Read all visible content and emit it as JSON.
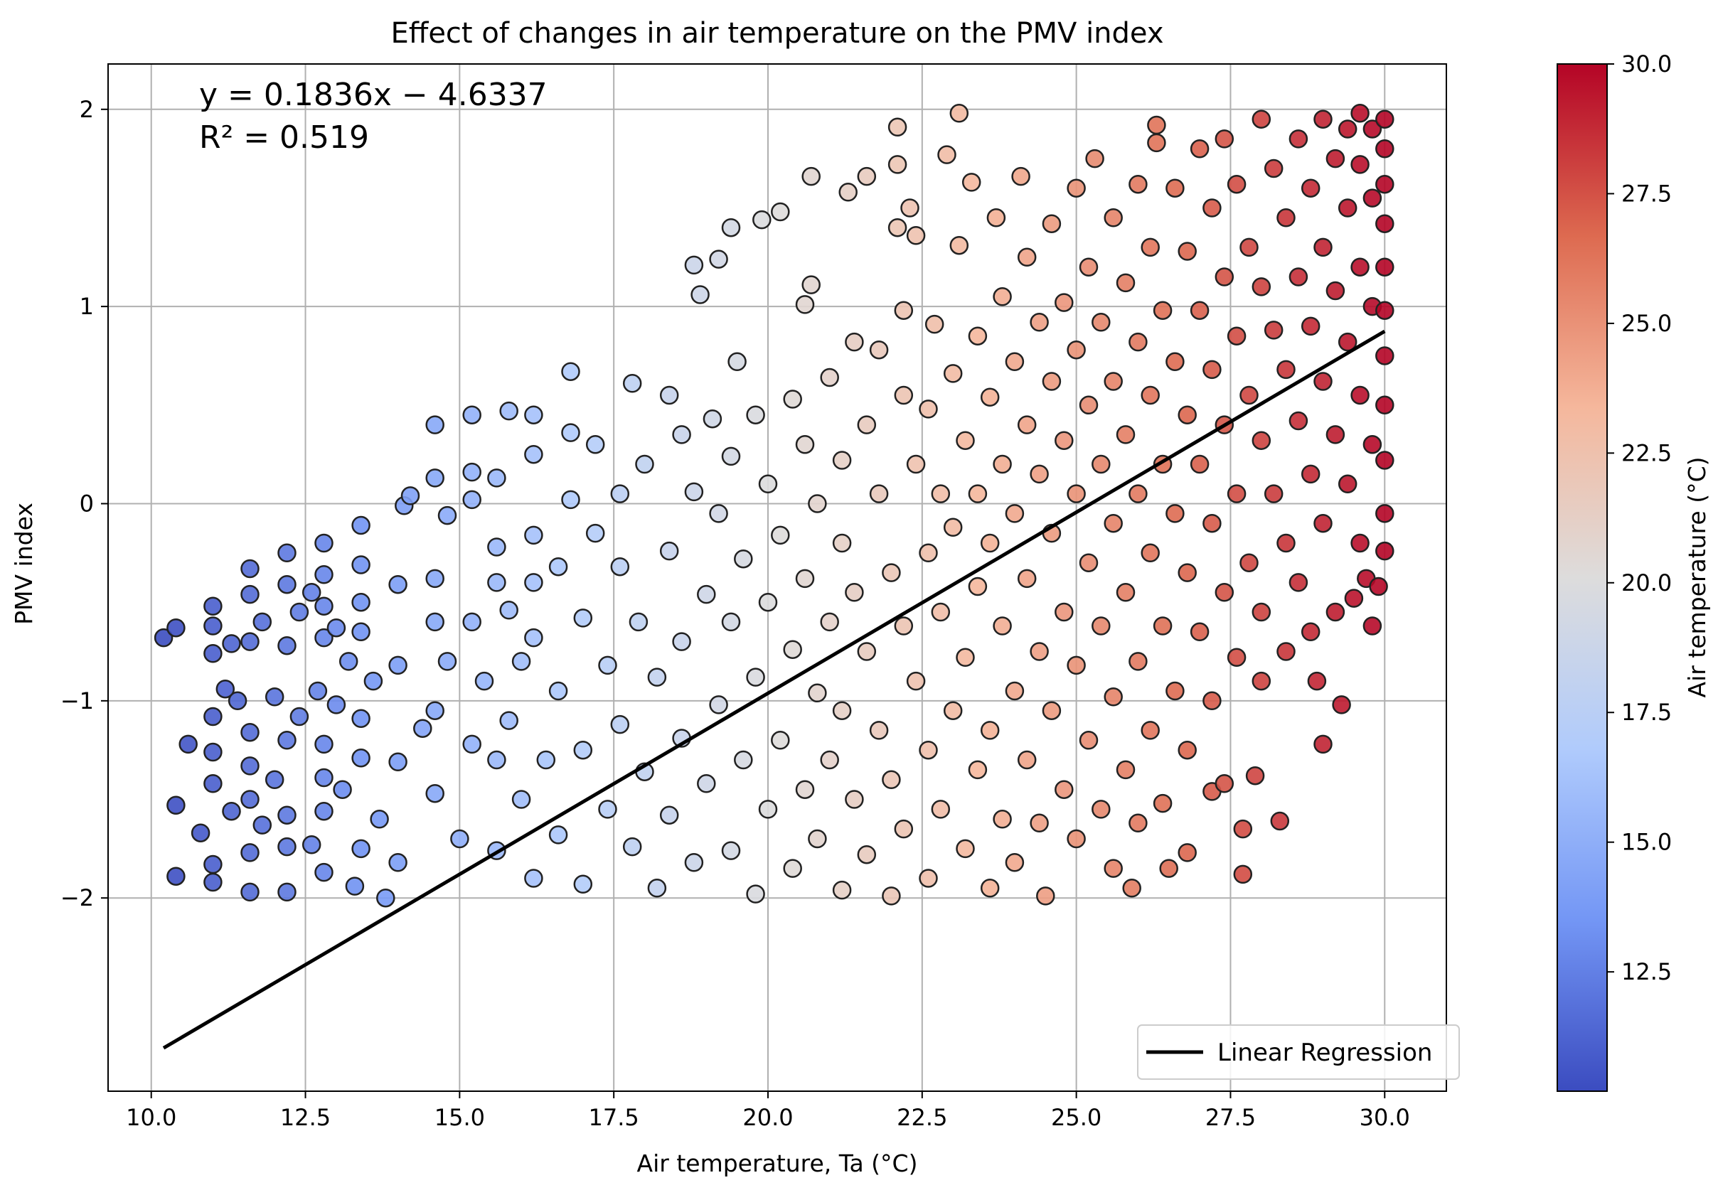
{
  "chart_data": {
    "type": "scatter",
    "title": "Effect of changes in air temperature on the PMV index",
    "xlabel": "Air temperature, Ta (°C)",
    "ylabel": "PMV index",
    "xlim": [
      9.3,
      31.0
    ],
    "ylim": [
      -2.98,
      2.23
    ],
    "xticks": [
      10.0,
      12.5,
      15.0,
      17.5,
      20.0,
      22.5,
      25.0,
      27.5,
      30.0
    ],
    "xtick_labels": [
      "10.0",
      "12.5",
      "15.0",
      "17.5",
      "20.0",
      "22.5",
      "25.0",
      "27.5",
      "30.0"
    ],
    "yticks": [
      2,
      1,
      0,
      -1,
      -2
    ],
    "ytick_labels": [
      "2",
      "1",
      "0",
      "−1",
      "−2"
    ],
    "grid": true,
    "annotation": {
      "equation": "y = 0.1836x − 4.6337",
      "r_squared": "R² = 0.519"
    },
    "regression": {
      "label": "Linear Regression",
      "slope": 0.1836,
      "intercept": -4.6337,
      "x_range": [
        10.2,
        30.0
      ],
      "color": "#000000"
    },
    "legend": {
      "entries": [
        "Linear Regression"
      ],
      "position": "lower-right"
    },
    "colorbar": {
      "label": "Air temperature (°C)",
      "min": 10.2,
      "max": 30.0,
      "ticks": [
        30.0,
        27.5,
        25.0,
        22.5,
        20.0,
        17.5,
        15.0,
        12.5
      ],
      "tick_labels": [
        "30.0",
        "27.5",
        "25.0",
        "22.5",
        "20.0",
        "17.5",
        "15.0",
        "12.5"
      ],
      "colormap": "coolwarm",
      "colors": [
        "#3b4cc0",
        "#7396f5",
        "#b0cbfc",
        "#dddcdc",
        "#f5b79c",
        "#dd6a50",
        "#b40426"
      ]
    },
    "points": [
      [
        10.2,
        -0.68
      ],
      [
        10.4,
        -0.63
      ],
      [
        10.4,
        -1.53
      ],
      [
        10.4,
        -1.89
      ],
      [
        10.6,
        -1.22
      ],
      [
        10.8,
        -1.67
      ],
      [
        11.0,
        -0.52
      ],
      [
        11.0,
        -0.62
      ],
      [
        11.0,
        -0.76
      ],
      [
        11.0,
        -1.08
      ],
      [
        11.0,
        -1.26
      ],
      [
        11.0,
        -1.42
      ],
      [
        11.0,
        -1.83
      ],
      [
        11.0,
        -1.92
      ],
      [
        11.2,
        -0.94
      ],
      [
        11.3,
        -1.56
      ],
      [
        11.3,
        -0.71
      ],
      [
        11.4,
        -1.0
      ],
      [
        11.6,
        -0.33
      ],
      [
        11.6,
        -0.46
      ],
      [
        11.6,
        -0.7
      ],
      [
        11.6,
        -1.16
      ],
      [
        11.6,
        -1.33
      ],
      [
        11.6,
        -1.5
      ],
      [
        11.6,
        -1.77
      ],
      [
        11.6,
        -1.97
      ],
      [
        11.8,
        -0.6
      ],
      [
        11.8,
        -1.63
      ],
      [
        12.0,
        -0.98
      ],
      [
        12.0,
        -1.4
      ],
      [
        12.2,
        -0.25
      ],
      [
        12.2,
        -0.41
      ],
      [
        12.2,
        -0.72
      ],
      [
        12.2,
        -1.2
      ],
      [
        12.2,
        -1.58
      ],
      [
        12.2,
        -1.74
      ],
      [
        12.2,
        -1.97
      ],
      [
        12.4,
        -0.55
      ],
      [
        12.4,
        -1.08
      ],
      [
        12.6,
        -0.45
      ],
      [
        12.6,
        -1.73
      ],
      [
        12.7,
        -0.95
      ],
      [
        12.8,
        -0.2
      ],
      [
        12.8,
        -0.36
      ],
      [
        12.8,
        -0.52
      ],
      [
        12.8,
        -0.68
      ],
      [
        12.8,
        -1.22
      ],
      [
        12.8,
        -1.39
      ],
      [
        12.8,
        -1.56
      ],
      [
        12.8,
        -1.87
      ],
      [
        13.0,
        -0.63
      ],
      [
        13.0,
        -1.02
      ],
      [
        13.1,
        -1.45
      ],
      [
        13.2,
        -0.8
      ],
      [
        13.3,
        -1.94
      ],
      [
        13.4,
        -0.11
      ],
      [
        13.4,
        -0.31
      ],
      [
        13.4,
        -0.5
      ],
      [
        13.4,
        -0.65
      ],
      [
        13.4,
        -1.09
      ],
      [
        13.4,
        -1.29
      ],
      [
        13.4,
        -1.75
      ],
      [
        13.6,
        -0.9
      ],
      [
        13.7,
        -1.6
      ],
      [
        13.8,
        -2.0
      ],
      [
        14.0,
        -0.41
      ],
      [
        14.0,
        -0.82
      ],
      [
        14.0,
        -1.31
      ],
      [
        14.0,
        -1.82
      ],
      [
        14.1,
        -0.01
      ],
      [
        14.2,
        0.04
      ],
      [
        14.4,
        -1.14
      ],
      [
        14.6,
        -0.38
      ],
      [
        14.6,
        -0.6
      ],
      [
        14.6,
        -1.05
      ],
      [
        14.6,
        -1.47
      ],
      [
        14.6,
        0.13
      ],
      [
        14.6,
        0.4
      ],
      [
        14.8,
        -0.06
      ],
      [
        14.8,
        -0.8
      ],
      [
        15.0,
        -1.7
      ],
      [
        15.2,
        -0.6
      ],
      [
        15.2,
        -1.22
      ],
      [
        15.2,
        0.02
      ],
      [
        15.2,
        0.16
      ],
      [
        15.2,
        0.45
      ],
      [
        15.4,
        -0.9
      ],
      [
        15.6,
        -0.22
      ],
      [
        15.6,
        -0.4
      ],
      [
        15.6,
        -1.3
      ],
      [
        15.6,
        -1.76
      ],
      [
        15.6,
        0.13
      ],
      [
        15.8,
        -0.54
      ],
      [
        15.8,
        -1.1
      ],
      [
        15.8,
        0.47
      ],
      [
        16.0,
        -0.8
      ],
      [
        16.0,
        -1.5
      ],
      [
        16.2,
        -0.16
      ],
      [
        16.2,
        -0.4
      ],
      [
        16.2,
        -0.68
      ],
      [
        16.2,
        -1.9
      ],
      [
        16.2,
        0.25
      ],
      [
        16.2,
        0.45
      ],
      [
        16.4,
        -1.3
      ],
      [
        16.6,
        -0.95
      ],
      [
        16.6,
        -0.32
      ],
      [
        16.6,
        -1.68
      ],
      [
        16.8,
        0.02
      ],
      [
        16.8,
        0.36
      ],
      [
        16.8,
        0.67
      ],
      [
        17.0,
        -0.58
      ],
      [
        17.0,
        -1.25
      ],
      [
        17.0,
        -1.93
      ],
      [
        17.2,
        -0.15
      ],
      [
        17.2,
        0.3
      ],
      [
        17.4,
        -0.82
      ],
      [
        17.4,
        -1.55
      ],
      [
        17.6,
        -0.32
      ],
      [
        17.6,
        0.05
      ],
      [
        17.6,
        -1.12
      ],
      [
        17.8,
        0.61
      ],
      [
        17.8,
        -1.74
      ],
      [
        17.9,
        -0.6
      ],
      [
        18.0,
        0.2
      ],
      [
        18.0,
        -1.36
      ],
      [
        18.2,
        -0.88
      ],
      [
        18.2,
        -1.95
      ],
      [
        18.4,
        0.55
      ],
      [
        18.4,
        -0.24
      ],
      [
        18.4,
        -1.58
      ],
      [
        18.6,
        0.35
      ],
      [
        18.6,
        -0.7
      ],
      [
        18.6,
        -1.19
      ],
      [
        18.8,
        1.21
      ],
      [
        18.8,
        0.06
      ],
      [
        18.8,
        -1.82
      ],
      [
        18.9,
        1.06
      ],
      [
        19.0,
        -0.46
      ],
      [
        19.0,
        -1.42
      ],
      [
        19.1,
        0.43
      ],
      [
        19.2,
        -0.05
      ],
      [
        19.2,
        -1.02
      ],
      [
        19.2,
        1.24
      ],
      [
        19.4,
        0.24
      ],
      [
        19.4,
        -0.6
      ],
      [
        19.4,
        -1.76
      ],
      [
        19.4,
        1.4
      ],
      [
        19.5,
        0.72
      ],
      [
        19.6,
        -1.3
      ],
      [
        19.6,
        -0.28
      ],
      [
        19.8,
        0.45
      ],
      [
        19.8,
        -0.88
      ],
      [
        19.8,
        -1.98
      ],
      [
        19.9,
        1.44
      ],
      [
        20.0,
        0.1
      ],
      [
        20.0,
        -0.5
      ],
      [
        20.0,
        -1.55
      ],
      [
        20.2,
        1.48
      ],
      [
        20.2,
        -0.16
      ],
      [
        20.2,
        -1.2
      ],
      [
        20.4,
        0.53
      ],
      [
        20.4,
        -0.74
      ],
      [
        20.4,
        -1.85
      ],
      [
        20.6,
        0.3
      ],
      [
        20.6,
        -0.38
      ],
      [
        20.6,
        -1.45
      ],
      [
        20.6,
        1.01
      ],
      [
        20.7,
        1.11
      ],
      [
        20.7,
        1.66
      ],
      [
        20.8,
        0.0
      ],
      [
        20.8,
        -0.96
      ],
      [
        20.8,
        -1.7
      ],
      [
        21.0,
        0.64
      ],
      [
        21.0,
        -0.6
      ],
      [
        21.0,
        -1.3
      ],
      [
        21.2,
        0.22
      ],
      [
        21.2,
        -0.2
      ],
      [
        21.2,
        -1.05
      ],
      [
        21.2,
        -1.96
      ],
      [
        21.3,
        1.58
      ],
      [
        21.4,
        0.82
      ],
      [
        21.4,
        -0.45
      ],
      [
        21.4,
        -1.5
      ],
      [
        21.6,
        0.4
      ],
      [
        21.6,
        -0.75
      ],
      [
        21.6,
        -1.78
      ],
      [
        21.6,
        1.66
      ],
      [
        21.8,
        0.05
      ],
      [
        21.8,
        -1.15
      ],
      [
        21.8,
        0.78
      ],
      [
        22.0,
        -0.35
      ],
      [
        22.0,
        -1.4
      ],
      [
        22.0,
        -1.99
      ],
      [
        22.1,
        1.91
      ],
      [
        22.1,
        1.72
      ],
      [
        22.1,
        1.4
      ],
      [
        22.2,
        0.98
      ],
      [
        22.2,
        0.55
      ],
      [
        22.2,
        -0.62
      ],
      [
        22.2,
        -1.65
      ],
      [
        22.3,
        1.5
      ],
      [
        22.4,
        0.2
      ],
      [
        22.4,
        -0.9
      ],
      [
        22.4,
        1.36
      ],
      [
        22.6,
        0.48
      ],
      [
        22.6,
        -0.25
      ],
      [
        22.6,
        -1.25
      ],
      [
        22.6,
        -1.9
      ],
      [
        22.7,
        0.91
      ],
      [
        22.8,
        0.05
      ],
      [
        22.8,
        -0.55
      ],
      [
        22.8,
        -1.55
      ],
      [
        22.9,
        1.77
      ],
      [
        23.0,
        0.66
      ],
      [
        23.0,
        -0.12
      ],
      [
        23.0,
        -1.05
      ],
      [
        23.1,
        1.98
      ],
      [
        23.1,
        1.31
      ],
      [
        23.2,
        0.32
      ],
      [
        23.2,
        -0.78
      ],
      [
        23.2,
        -1.75
      ],
      [
        23.3,
        1.63
      ],
      [
        23.4,
        0.85
      ],
      [
        23.4,
        0.05
      ],
      [
        23.4,
        -0.42
      ],
      [
        23.4,
        -1.35
      ],
      [
        23.6,
        0.54
      ],
      [
        23.6,
        -0.2
      ],
      [
        23.6,
        -1.15
      ],
      [
        23.6,
        -1.95
      ],
      [
        23.7,
        1.45
      ],
      [
        23.8,
        1.05
      ],
      [
        23.8,
        0.2
      ],
      [
        23.8,
        -0.62
      ],
      [
        23.8,
        -1.6
      ],
      [
        24.0,
        0.72
      ],
      [
        24.0,
        -0.05
      ],
      [
        24.0,
        -0.95
      ],
      [
        24.0,
        -1.82
      ],
      [
        24.1,
        1.66
      ],
      [
        24.2,
        1.25
      ],
      [
        24.2,
        0.4
      ],
      [
        24.2,
        -0.38
      ],
      [
        24.2,
        -1.3
      ],
      [
        24.4,
        0.92
      ],
      [
        24.4,
        0.15
      ],
      [
        24.4,
        -0.75
      ],
      [
        24.4,
        -1.62
      ],
      [
        24.5,
        -1.99
      ],
      [
        24.6,
        1.42
      ],
      [
        24.6,
        0.62
      ],
      [
        24.6,
        -0.15
      ],
      [
        24.6,
        -1.05
      ],
      [
        24.8,
        1.02
      ],
      [
        24.8,
        0.32
      ],
      [
        24.8,
        -0.55
      ],
      [
        24.8,
        -1.45
      ],
      [
        25.0,
        1.6
      ],
      [
        25.0,
        0.78
      ],
      [
        25.0,
        0.05
      ],
      [
        25.0,
        -0.82
      ],
      [
        25.0,
        -1.7
      ],
      [
        25.2,
        1.2
      ],
      [
        25.2,
        0.5
      ],
      [
        25.2,
        -0.3
      ],
      [
        25.2,
        -1.2
      ],
      [
        25.3,
        1.75
      ],
      [
        25.4,
        0.92
      ],
      [
        25.4,
        0.2
      ],
      [
        25.4,
        -0.62
      ],
      [
        25.4,
        -1.55
      ],
      [
        25.6,
        1.45
      ],
      [
        25.6,
        0.62
      ],
      [
        25.6,
        -0.1
      ],
      [
        25.6,
        -0.98
      ],
      [
        25.6,
        -1.85
      ],
      [
        25.8,
        1.12
      ],
      [
        25.8,
        0.35
      ],
      [
        25.8,
        -0.45
      ],
      [
        25.8,
        -1.35
      ],
      [
        25.9,
        -1.95
      ],
      [
        26.0,
        1.62
      ],
      [
        26.0,
        0.82
      ],
      [
        26.0,
        0.05
      ],
      [
        26.0,
        -0.8
      ],
      [
        26.0,
        -1.62
      ],
      [
        26.2,
        1.3
      ],
      [
        26.2,
        0.55
      ],
      [
        26.2,
        -0.25
      ],
      [
        26.2,
        -1.15
      ],
      [
        26.3,
        1.92
      ],
      [
        26.3,
        1.83
      ],
      [
        26.4,
        0.98
      ],
      [
        26.4,
        0.2
      ],
      [
        26.4,
        -0.62
      ],
      [
        26.4,
        -1.52
      ],
      [
        26.5,
        -1.85
      ],
      [
        26.6,
        1.6
      ],
      [
        26.6,
        0.72
      ],
      [
        26.6,
        -0.05
      ],
      [
        26.6,
        -0.95
      ],
      [
        26.8,
        1.28
      ],
      [
        26.8,
        0.45
      ],
      [
        26.8,
        -0.35
      ],
      [
        26.8,
        -1.25
      ],
      [
        26.8,
        -1.77
      ],
      [
        27.0,
        1.8
      ],
      [
        27.0,
        0.98
      ],
      [
        27.0,
        0.2
      ],
      [
        27.0,
        -0.65
      ],
      [
        27.2,
        1.5
      ],
      [
        27.2,
        0.68
      ],
      [
        27.2,
        -0.1
      ],
      [
        27.2,
        -1.0
      ],
      [
        27.2,
        -1.46
      ],
      [
        27.4,
        1.85
      ],
      [
        27.4,
        1.15
      ],
      [
        27.4,
        0.4
      ],
      [
        27.4,
        -0.45
      ],
      [
        27.4,
        -1.42
      ],
      [
        27.6,
        1.62
      ],
      [
        27.6,
        0.85
      ],
      [
        27.6,
        0.05
      ],
      [
        27.6,
        -0.78
      ],
      [
        27.7,
        -1.65
      ],
      [
        27.7,
        -1.88
      ],
      [
        27.8,
        1.3
      ],
      [
        27.8,
        0.55
      ],
      [
        27.8,
        -0.3
      ],
      [
        27.9,
        -1.38
      ],
      [
        28.0,
        1.95
      ],
      [
        28.0,
        1.1
      ],
      [
        28.0,
        0.32
      ],
      [
        28.0,
        -0.55
      ],
      [
        28.0,
        -0.9
      ],
      [
        28.2,
        1.7
      ],
      [
        28.2,
        0.88
      ],
      [
        28.2,
        0.05
      ],
      [
        28.3,
        -1.61
      ],
      [
        28.4,
        1.45
      ],
      [
        28.4,
        0.68
      ],
      [
        28.4,
        -0.2
      ],
      [
        28.4,
        -0.75
      ],
      [
        28.6,
        1.85
      ],
      [
        28.6,
        1.15
      ],
      [
        28.6,
        0.42
      ],
      [
        28.6,
        -0.4
      ],
      [
        28.8,
        1.6
      ],
      [
        28.8,
        0.9
      ],
      [
        28.8,
        0.15
      ],
      [
        28.8,
        -0.65
      ],
      [
        28.9,
        -0.9
      ],
      [
        29.0,
        1.95
      ],
      [
        29.0,
        1.3
      ],
      [
        29.0,
        0.62
      ],
      [
        29.0,
        -0.1
      ],
      [
        29.0,
        -1.22
      ],
      [
        29.2,
        1.75
      ],
      [
        29.2,
        1.08
      ],
      [
        29.2,
        0.35
      ],
      [
        29.2,
        -0.55
      ],
      [
        29.3,
        -1.02
      ],
      [
        29.4,
        1.9
      ],
      [
        29.4,
        1.5
      ],
      [
        29.4,
        0.82
      ],
      [
        29.4,
        0.1
      ],
      [
        29.5,
        -0.48
      ],
      [
        29.6,
        1.98
      ],
      [
        29.6,
        1.72
      ],
      [
        29.6,
        1.2
      ],
      [
        29.6,
        0.55
      ],
      [
        29.6,
        -0.2
      ],
      [
        29.7,
        -0.38
      ],
      [
        29.8,
        1.9
      ],
      [
        29.8,
        1.55
      ],
      [
        29.8,
        1.0
      ],
      [
        29.8,
        0.3
      ],
      [
        29.8,
        -0.62
      ],
      [
        29.9,
        -0.42
      ],
      [
        30.0,
        1.95
      ],
      [
        30.0,
        1.8
      ],
      [
        30.0,
        1.62
      ],
      [
        30.0,
        1.42
      ],
      [
        30.0,
        1.2
      ],
      [
        30.0,
        0.98
      ],
      [
        30.0,
        0.75
      ],
      [
        30.0,
        0.5
      ],
      [
        30.0,
        0.22
      ],
      [
        30.0,
        -0.05
      ],
      [
        30.0,
        -0.24
      ]
    ]
  }
}
